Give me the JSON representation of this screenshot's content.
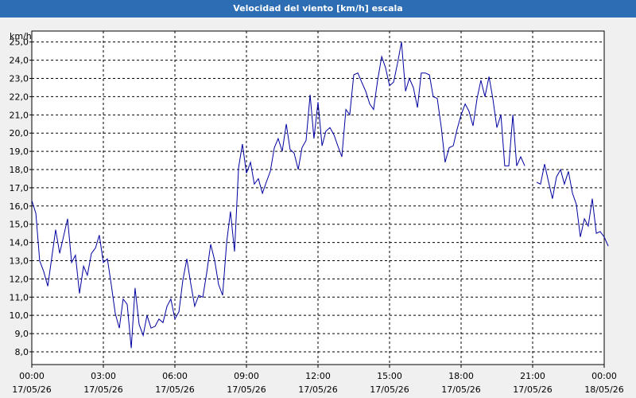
{
  "window": {
    "title": "Velocidad del viento [km/h] escala"
  },
  "colors": {
    "title_bar": "#2d6db3",
    "line": "#0000a0",
    "grid": "#000000",
    "background": "#f0f0f0"
  },
  "chart_data": {
    "type": "line",
    "title": "Velocidad del viento [km/h] escala",
    "ylabel": "km/h",
    "xlabel": "",
    "ylim": [
      7.3,
      25.6
    ],
    "xlim": [
      0,
      24
    ],
    "grid": true,
    "yticks": [
      "8,0",
      "9,0",
      "10,0",
      "11,0",
      "12,0",
      "13,0",
      "14,0",
      "15,0",
      "16,0",
      "17,0",
      "18,0",
      "19,0",
      "20,0",
      "21,0",
      "22,0",
      "23,0",
      "24,0",
      "25,0"
    ],
    "xticks": [
      {
        "time": "00:00",
        "date": "17/05/26"
      },
      {
        "time": "03:00",
        "date": "17/05/26"
      },
      {
        "time": "06:00",
        "date": "17/05/26"
      },
      {
        "time": "09:00",
        "date": "17/05/26"
      },
      {
        "time": "12:00",
        "date": "17/05/26"
      },
      {
        "time": "15:00",
        "date": "17/05/26"
      },
      {
        "time": "18:00",
        "date": "17/05/26"
      },
      {
        "time": "21:00",
        "date": "17/05/26"
      },
      {
        "time": "00:00",
        "date": "18/05/26"
      }
    ],
    "series": [
      {
        "segments": [
          [
            [
              0.0,
              16.3
            ],
            [
              0.17,
              15.6
            ],
            [
              0.33,
              13.0
            ],
            [
              0.5,
              12.4
            ],
            [
              0.67,
              11.6
            ],
            [
              1.0,
              14.7
            ],
            [
              1.17,
              13.4
            ],
            [
              1.5,
              15.3
            ],
            [
              1.67,
              12.9
            ],
            [
              1.83,
              13.3
            ],
            [
              2.0,
              11.2
            ],
            [
              2.17,
              12.7
            ],
            [
              2.33,
              12.2
            ],
            [
              2.5,
              13.4
            ],
            [
              2.67,
              13.7
            ],
            [
              2.83,
              14.4
            ],
            [
              3.0,
              12.9
            ],
            [
              3.17,
              13.1
            ],
            [
              3.33,
              11.7
            ],
            [
              3.5,
              10.1
            ],
            [
              3.67,
              9.3
            ],
            [
              3.83,
              10.9
            ],
            [
              4.0,
              10.6
            ],
            [
              4.17,
              8.2
            ],
            [
              4.33,
              11.5
            ],
            [
              4.5,
              9.5
            ],
            [
              4.67,
              8.9
            ],
            [
              4.83,
              10.0
            ],
            [
              5.0,
              9.3
            ],
            [
              5.17,
              9.4
            ],
            [
              5.33,
              9.8
            ],
            [
              5.5,
              9.6
            ],
            [
              5.67,
              10.5
            ],
            [
              5.83,
              10.9
            ],
            [
              6.0,
              9.8
            ],
            [
              6.17,
              10.2
            ],
            [
              6.33,
              11.9
            ],
            [
              6.5,
              13.1
            ],
            [
              6.67,
              11.7
            ],
            [
              6.83,
              10.5
            ],
            [
              7.0,
              11.1
            ],
            [
              7.17,
              11.0
            ],
            [
              7.33,
              12.3
            ],
            [
              7.5,
              13.9
            ],
            [
              7.67,
              13.0
            ],
            [
              7.83,
              11.7
            ],
            [
              8.0,
              11.1
            ],
            [
              8.17,
              14.0
            ],
            [
              8.33,
              15.7
            ],
            [
              8.5,
              13.5
            ],
            [
              8.67,
              18.1
            ],
            [
              8.83,
              19.4
            ],
            [
              9.0,
              17.8
            ],
            [
              9.17,
              18.4
            ],
            [
              9.33,
              17.2
            ],
            [
              9.5,
              17.5
            ],
            [
              9.67,
              16.7
            ],
            [
              9.83,
              17.3
            ],
            [
              10.0,
              17.9
            ],
            [
              10.17,
              19.2
            ],
            [
              10.33,
              19.7
            ],
            [
              10.5,
              19.0
            ],
            [
              10.67,
              20.5
            ],
            [
              10.83,
              19.1
            ],
            [
              11.0,
              18.9
            ],
            [
              11.17,
              18.0
            ],
            [
              11.33,
              19.2
            ],
            [
              11.5,
              19.6
            ],
            [
              11.67,
              22.1
            ],
            [
              11.83,
              19.7
            ],
            [
              12.0,
              21.7
            ],
            [
              12.17,
              19.3
            ],
            [
              12.33,
              20.1
            ],
            [
              12.5,
              20.3
            ],
            [
              12.67,
              19.9
            ],
            [
              12.83,
              19.3
            ],
            [
              13.0,
              18.7
            ],
            [
              13.17,
              21.3
            ],
            [
              13.33,
              21.0
            ],
            [
              13.5,
              23.2
            ],
            [
              13.67,
              23.3
            ],
            [
              13.83,
              22.8
            ],
            [
              14.0,
              22.3
            ],
            [
              14.17,
              21.6
            ],
            [
              14.33,
              21.3
            ],
            [
              14.5,
              22.9
            ],
            [
              14.67,
              24.2
            ],
            [
              14.83,
              23.6
            ],
            [
              15.0,
              22.6
            ],
            [
              15.17,
              22.8
            ],
            [
              15.33,
              23.8
            ],
            [
              15.5,
              25.0
            ],
            [
              15.67,
              22.3
            ],
            [
              15.83,
              23.0
            ],
            [
              16.0,
              22.5
            ],
            [
              16.17,
              21.4
            ],
            [
              16.33,
              23.3
            ],
            [
              16.5,
              23.3
            ],
            [
              16.67,
              23.2
            ],
            [
              16.83,
              22.0
            ],
            [
              17.0,
              21.9
            ],
            [
              17.17,
              20.3
            ],
            [
              17.33,
              18.4
            ],
            [
              17.5,
              19.2
            ],
            [
              17.67,
              19.3
            ],
            [
              17.83,
              20.2
            ],
            [
              18.0,
              21.0
            ],
            [
              18.17,
              21.6
            ],
            [
              18.33,
              21.2
            ],
            [
              18.5,
              20.4
            ],
            [
              18.67,
              21.9
            ],
            [
              18.83,
              22.9
            ],
            [
              19.0,
              22.0
            ],
            [
              19.17,
              23.1
            ],
            [
              19.33,
              21.9
            ],
            [
              19.5,
              20.3
            ],
            [
              19.67,
              21.0
            ],
            [
              19.83,
              18.2
            ],
            [
              20.0,
              18.2
            ],
            [
              20.17,
              21.0
            ],
            [
              20.33,
              18.2
            ],
            [
              20.5,
              18.7
            ],
            [
              20.67,
              18.2
            ]
          ],
          [
            [
              21.17,
              17.3
            ],
            [
              21.33,
              17.2
            ],
            [
              21.5,
              18.3
            ],
            [
              21.67,
              17.3
            ],
            [
              21.83,
              16.4
            ],
            [
              22.0,
              17.6
            ],
            [
              22.17,
              18.0
            ],
            [
              22.33,
              17.2
            ],
            [
              22.5,
              17.9
            ],
            [
              22.67,
              16.7
            ],
            [
              22.83,
              16.1
            ],
            [
              23.0,
              14.3
            ],
            [
              23.17,
              15.3
            ],
            [
              23.33,
              14.9
            ],
            [
              23.5,
              16.4
            ],
            [
              23.67,
              14.5
            ],
            [
              23.83,
              14.6
            ],
            [
              24.0,
              14.3
            ],
            [
              24.17,
              13.8
            ]
          ]
        ]
      }
    ]
  }
}
